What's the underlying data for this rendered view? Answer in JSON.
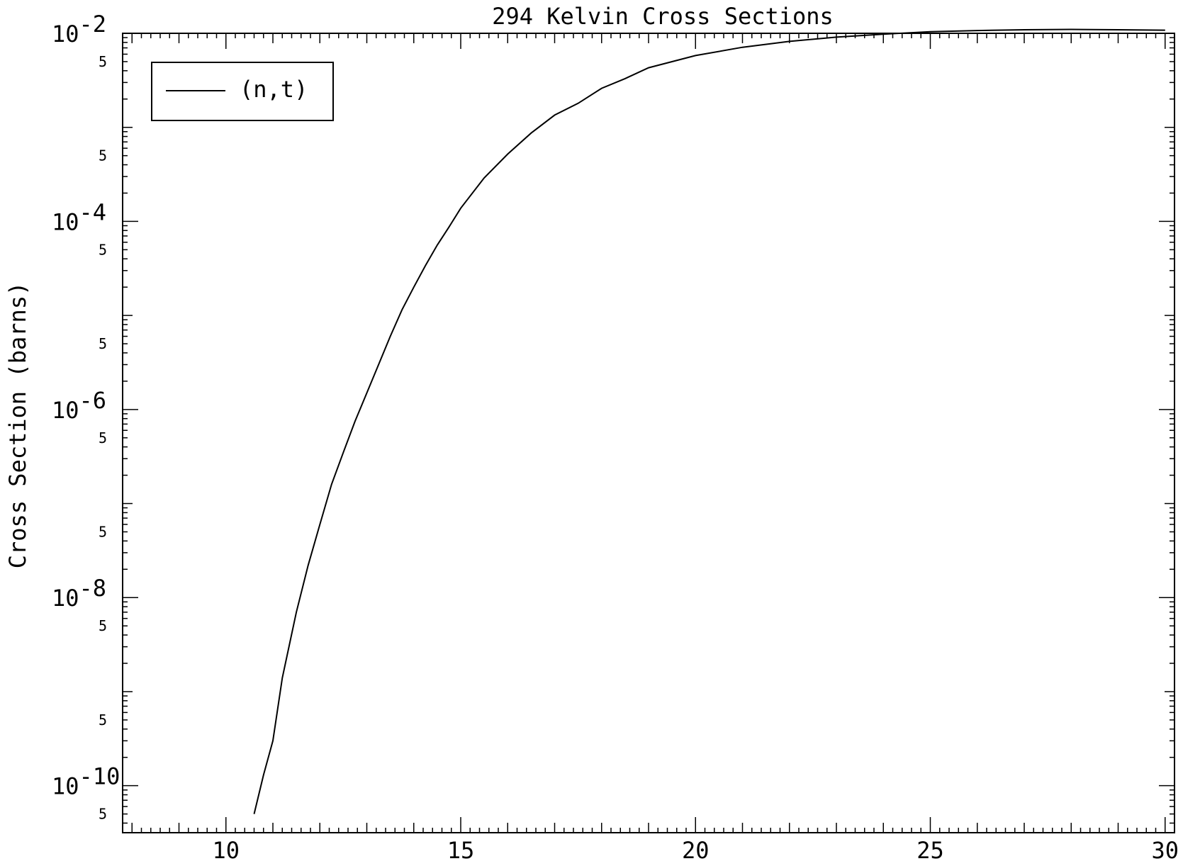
{
  "chart_data": {
    "type": "line",
    "title": "294 Kelvin Cross Sections",
    "xlabel": "",
    "ylabel": "Cross Section (barns)",
    "xlim": [
      7.8,
      30.2
    ],
    "ylim_log10": [
      -10.5,
      -2
    ],
    "yscale": "log",
    "xticks": [
      {
        "value": 10,
        "label": "10"
      },
      {
        "value": 15,
        "label": "15"
      },
      {
        "value": 20,
        "label": "20"
      },
      {
        "value": 25,
        "label": "25"
      },
      {
        "value": 30,
        "label": "30"
      }
    ],
    "yticks_major": [
      {
        "value": -2,
        "base": "10",
        "exp": "-2"
      },
      {
        "value": -4,
        "base": "10",
        "exp": "-4"
      },
      {
        "value": -6,
        "base": "10",
        "exp": "-6"
      },
      {
        "value": -8,
        "base": "10",
        "exp": "-8"
      },
      {
        "value": -10,
        "base": "10",
        "exp": "-10"
      }
    ],
    "yticks_minor_label": "5",
    "legend": {
      "position": "top-left",
      "entries": [
        "(n,t)"
      ]
    },
    "grid": false,
    "series": [
      {
        "name": "(n,t)",
        "x": [
          10.6,
          10.8,
          11.0,
          11.2,
          11.5,
          11.75,
          12.0,
          12.25,
          12.5,
          12.75,
          13.0,
          13.25,
          13.5,
          13.75,
          14.0,
          14.25,
          14.5,
          14.75,
          15.0,
          15.5,
          16.0,
          16.5,
          17.0,
          17.5,
          18.0,
          18.5,
          19.0,
          20.0,
          21.0,
          22.0,
          23.0,
          24.0,
          25.0,
          26.0,
          27.0,
          28.0,
          29.0,
          30.0
        ],
        "y": [
          5e-11,
          1.3e-10,
          3e-10,
          1.4e-09,
          7e-09,
          2.2e-08,
          6e-08,
          1.6e-07,
          3.5e-07,
          7.5e-07,
          1.5e-06,
          3e-06,
          6e-06,
          1.15e-05,
          2e-05,
          3.4e-05,
          5.6e-05,
          8.7e-05,
          0.000138,
          0.00029,
          0.00052,
          0.00087,
          0.00135,
          0.0018,
          0.0026,
          0.0033,
          0.0043,
          0.0058,
          0.0071,
          0.0082,
          0.0091,
          0.0098,
          0.0104,
          0.0107,
          0.0109,
          0.011,
          0.0109,
          0.0108
        ]
      }
    ]
  }
}
